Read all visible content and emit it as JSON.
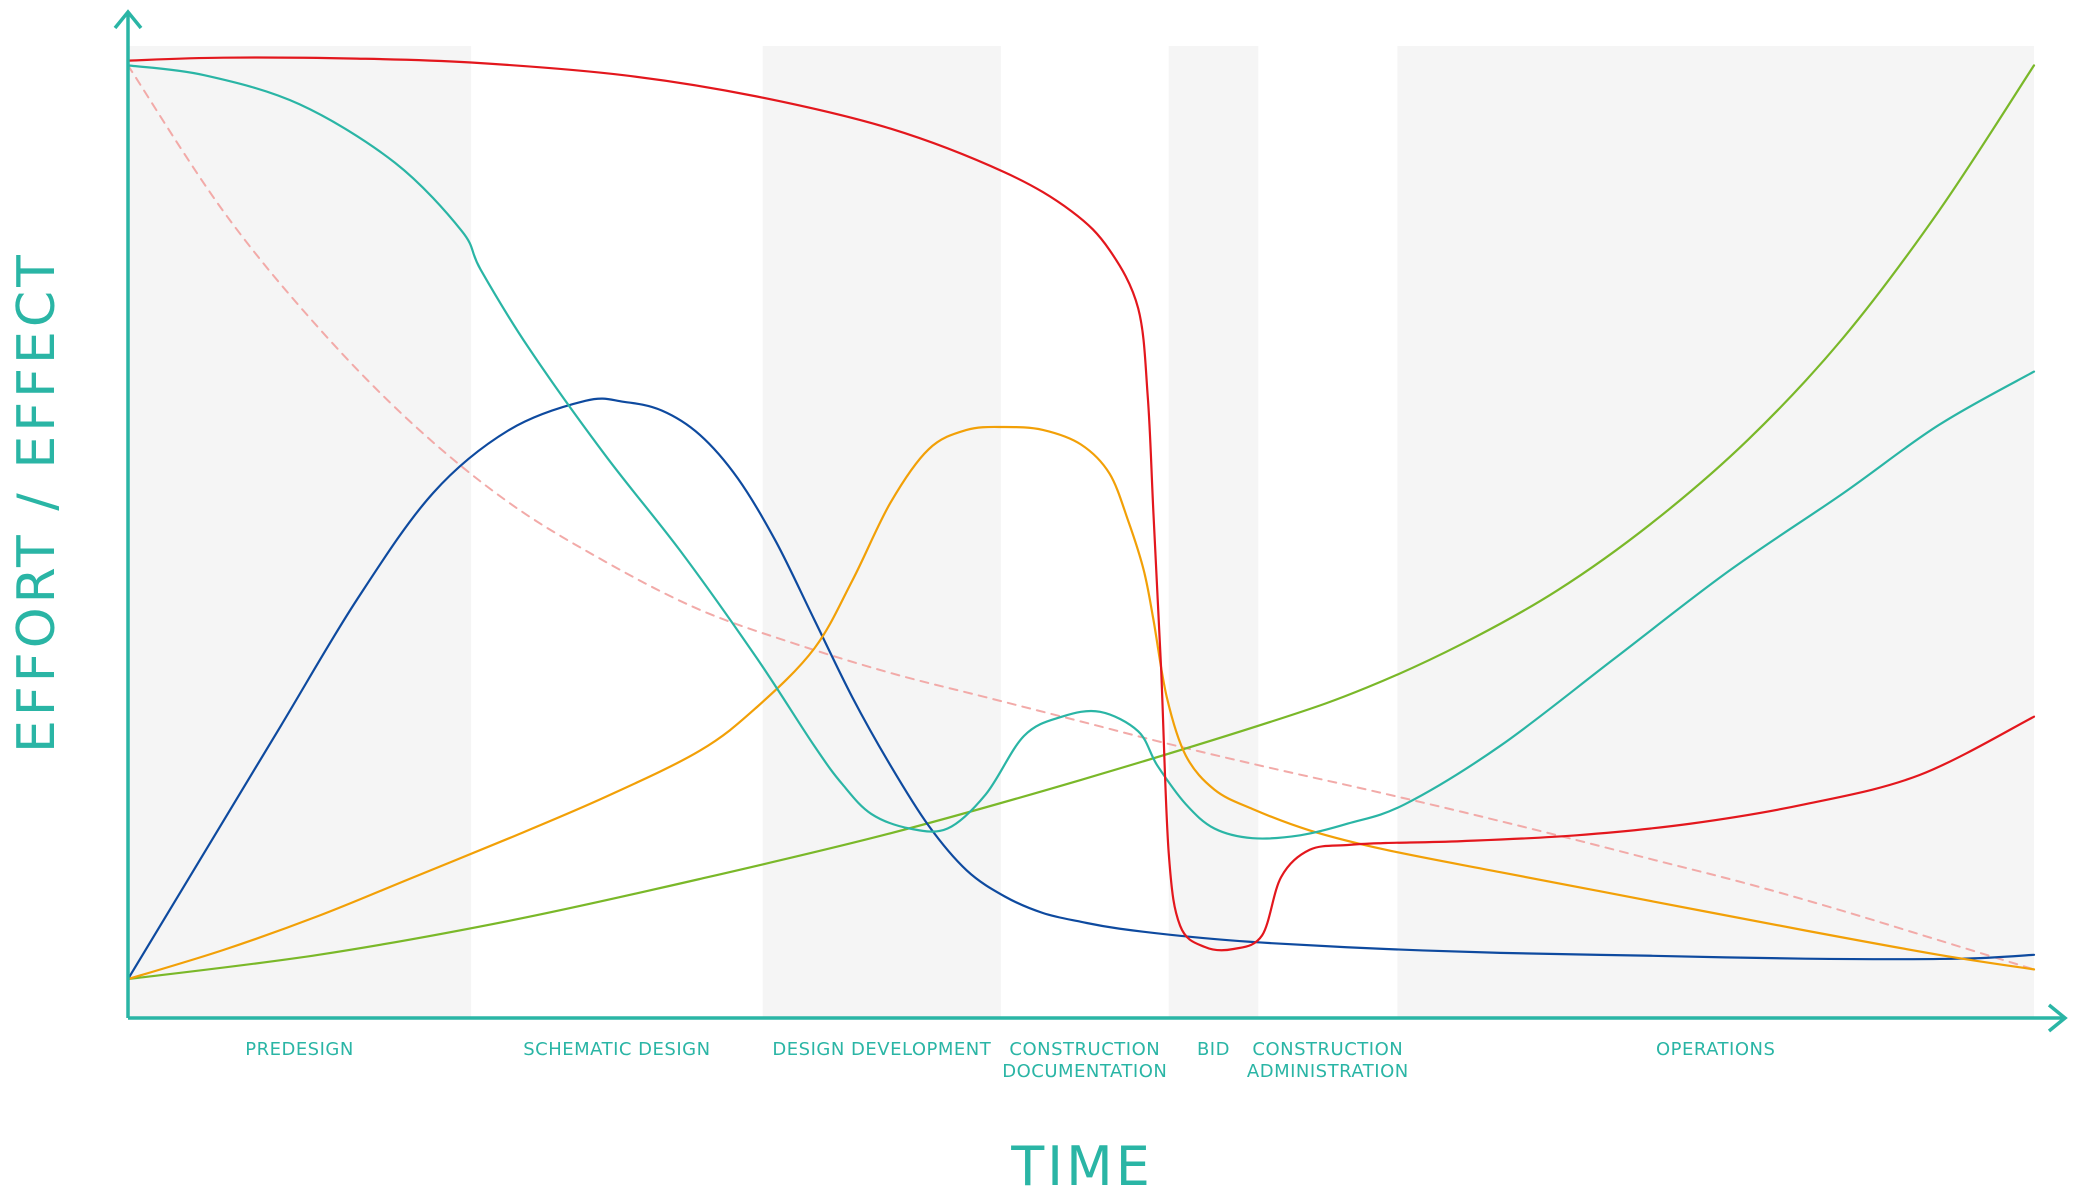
{
  "chart_data": {
    "type": "line",
    "xlabel": "TIME",
    "ylabel": "EFFORT / EFFECT",
    "xlim": [
      0,
      100
    ],
    "ylim": [
      0,
      100
    ],
    "grid": false,
    "legend": "none",
    "axis_color": "#2ab5a5",
    "band_color": "#f5f5f5",
    "phases": [
      {
        "label": [
          "PREDESIGN"
        ],
        "start": 0,
        "end": 18,
        "shaded": true
      },
      {
        "label": [
          "SCHEMATIC DESIGN"
        ],
        "start": 18,
        "end": 33.3,
        "shaded": false
      },
      {
        "label": [
          "DESIGN DEVELOPMENT"
        ],
        "start": 33.3,
        "end": 45.8,
        "shaded": true
      },
      {
        "label": [
          "CONSTRUCTION",
          "DOCUMENTATION"
        ],
        "start": 45.8,
        "end": 54.6,
        "shaded": false
      },
      {
        "label": [
          "BID"
        ],
        "start": 54.6,
        "end": 59.3,
        "shaded": true
      },
      {
        "label": [
          "CONSTRUCTION",
          "ADMINISTRATION"
        ],
        "start": 59.3,
        "end": 66.6,
        "shaded": false
      },
      {
        "label": [
          "OPERATIONS"
        ],
        "start": 66.6,
        "end": 100,
        "shaded": true
      }
    ],
    "series": [
      {
        "color": "#e3171d",
        "dashed": false,
        "x": [
          0,
          5,
          12,
          18,
          26,
          33,
          40,
          46,
          49.5,
          51.5,
          53,
          53.5,
          53.8,
          54.2,
          54.6,
          55.2,
          56.5,
          58,
          59.5,
          60.5,
          62,
          64,
          66,
          70,
          76,
          82,
          88,
          94,
          100
        ],
        "y": [
          98.5,
          98.8,
          98.7,
          98.3,
          97,
          94.8,
          91.5,
          87,
          83,
          79,
          73,
          64,
          52,
          36,
          17,
          9.5,
          7.3,
          7.1,
          8.5,
          14.5,
          17.3,
          17.8,
          18,
          18.2,
          18.8,
          20,
          22,
          25,
          31
        ]
      },
      {
        "color": "#2ab5a5",
        "dashed": false,
        "x": [
          0,
          4,
          9,
          14,
          17.5,
          18.5,
          21,
          25,
          29,
          33,
          36,
          37.5,
          39,
          41,
          43,
          45,
          47,
          49,
          51,
          53,
          54,
          55.5,
          57,
          59,
          61.5,
          64,
          67,
          72,
          78,
          84,
          90,
          95,
          100
        ],
        "y": [
          98,
          97,
          94,
          88,
          81,
          77,
          69,
          58,
          48,
          37,
          28,
          24,
          21,
          19.5,
          19.5,
          23,
          29,
          31,
          31.5,
          29.5,
          26,
          22,
          19.5,
          18.5,
          18.8,
          20,
          22,
          28,
          37,
          46,
          54,
          61,
          66.5
        ]
      },
      {
        "color": "#0e4a9f",
        "dashed": false,
        "x": [
          0,
          4,
          8,
          12,
          16,
          20,
          24,
          26,
          28,
          30,
          32,
          34,
          36,
          38,
          40,
          42,
          44,
          46,
          48,
          50,
          52,
          56,
          60,
          66,
          72,
          80,
          88,
          96,
          100
        ],
        "y": [
          4,
          17,
          30,
          43,
          54,
          60.5,
          63.5,
          63.4,
          62.5,
          60,
          55.5,
          49,
          41,
          33,
          26,
          19.8,
          15.2,
          12.5,
          10.8,
          9.9,
          9.2,
          8.3,
          7.7,
          7.1,
          6.7,
          6.4,
          6.1,
          6.1,
          6.5
        ]
      },
      {
        "color": "#f2a007",
        "dashed": false,
        "x": [
          0,
          5,
          10,
          15,
          20,
          25,
          30,
          33,
          36,
          38,
          40,
          42,
          44,
          46,
          48,
          50,
          51.5,
          52.5,
          53.3,
          53.8,
          54.5,
          55.5,
          57,
          59,
          62,
          66,
          72,
          80,
          88,
          95,
          100
        ],
        "y": [
          4,
          7,
          10.5,
          14.5,
          18.5,
          22.7,
          27.5,
          32,
          38,
          45,
          53,
          58.5,
          60.5,
          60.8,
          60.5,
          59,
          56,
          51,
          46,
          41,
          33,
          27,
          23.5,
          21.5,
          19.3,
          17.3,
          15,
          12,
          9,
          6.5,
          5
        ]
      },
      {
        "color": "#7ab829",
        "dashed": false,
        "x": [
          0,
          10,
          20,
          30,
          40,
          50,
          60,
          65,
          70,
          75,
          80,
          85,
          90,
          95,
          100
        ],
        "y": [
          4,
          6.5,
          10,
          14.3,
          19,
          24.5,
          30.5,
          34,
          38.5,
          44,
          51,
          59.5,
          70,
          83,
          98
        ]
      },
      {
        "color": "#f2aaa8",
        "dashed": true,
        "x": [
          0,
          5,
          10,
          15,
          20,
          25,
          30,
          35,
          40,
          45,
          50,
          55,
          60,
          65,
          70,
          75,
          80,
          85,
          90,
          95,
          100
        ],
        "y": [
          98,
          83,
          71,
          61,
          53,
          47,
          42,
          38.5,
          35.5,
          33,
          30.5,
          28,
          25.7,
          23.5,
          21.2,
          18.8,
          16.3,
          13.8,
          11,
          8,
          5
        ]
      }
    ]
  }
}
